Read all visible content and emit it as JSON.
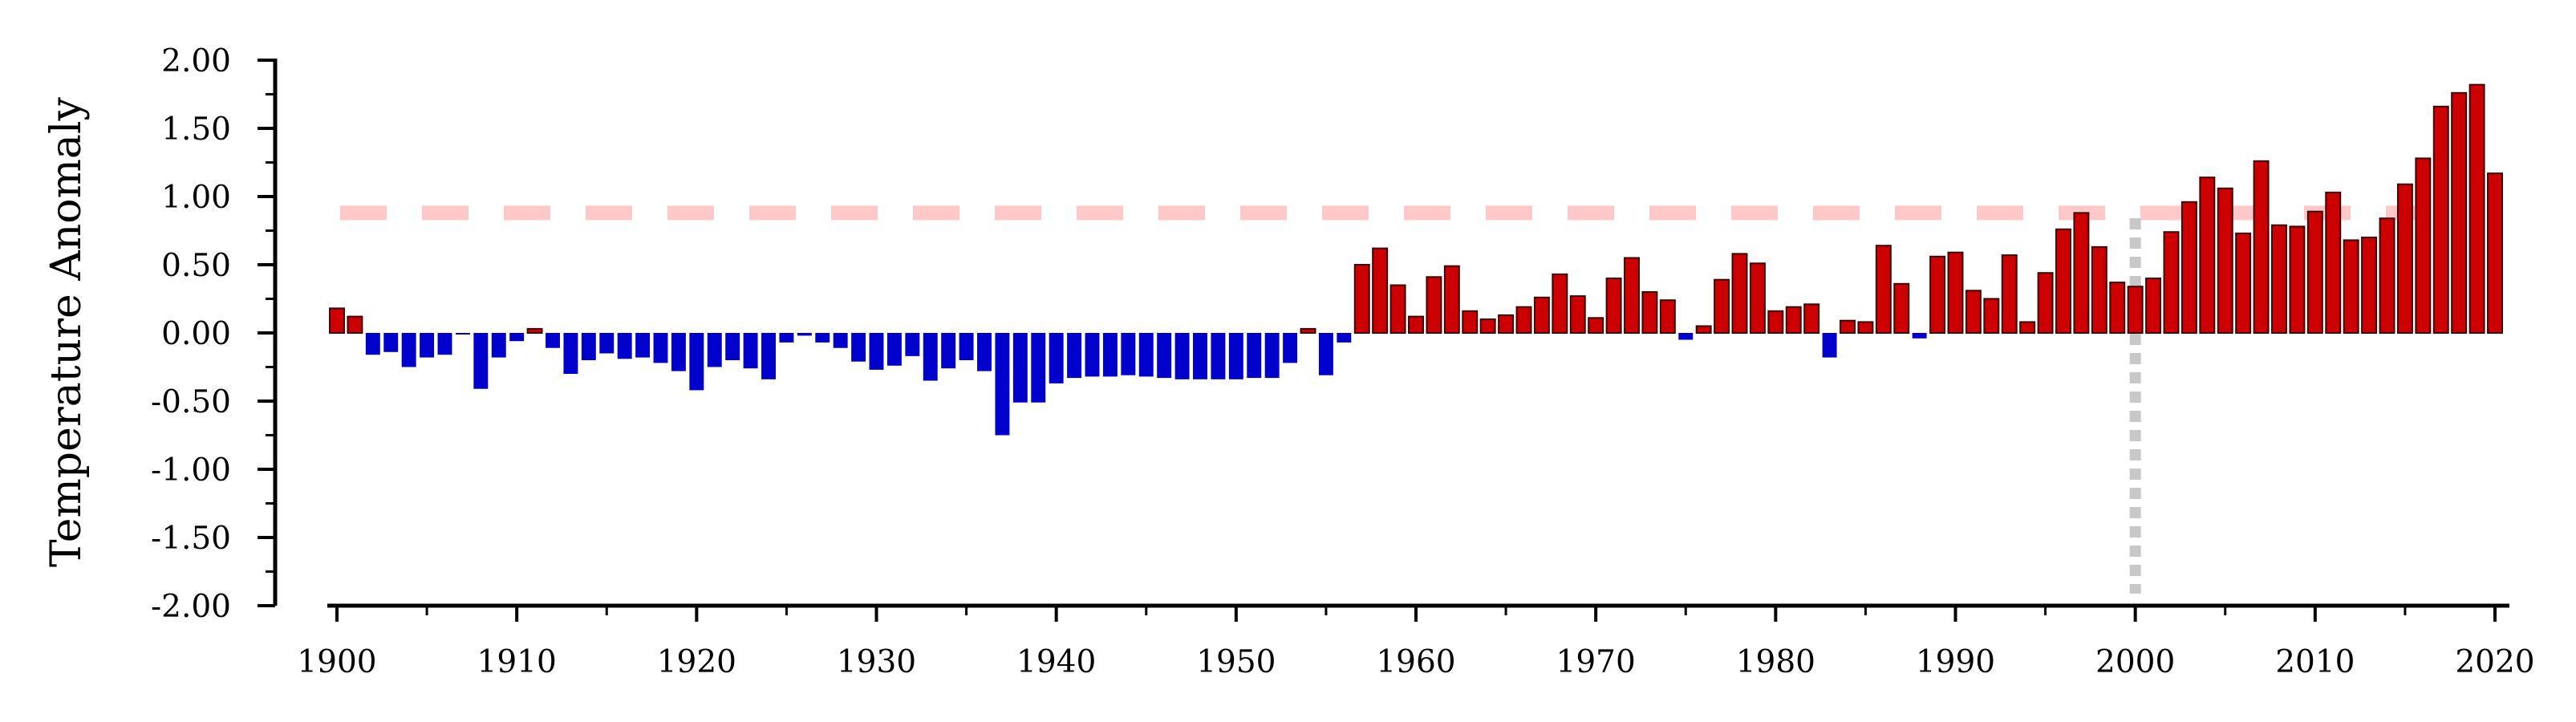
{
  "chart_data": {
    "type": "bar",
    "title": "",
    "xlabel": "",
    "ylabel": "Temperature Anomaly",
    "xlim": [
      1899.5,
      2020.5
    ],
    "ylim": [
      -2.0,
      2.0
    ],
    "yticks": [
      2.0,
      1.5,
      1.0,
      0.5,
      0.0,
      -0.5,
      -1.0,
      -1.5,
      -2.0
    ],
    "ytick_labels": [
      "2.00",
      "1.50",
      "1.00",
      "0.50",
      "0.00",
      "-0.50",
      "-1.00",
      "-1.50",
      "-2.00"
    ],
    "xticks": [
      1900,
      1910,
      1920,
      1930,
      1940,
      1950,
      1960,
      1970,
      1980,
      1990,
      2000,
      2010,
      2020
    ],
    "xtick_labels": [
      "1900",
      "1910",
      "1920",
      "1930",
      "1940",
      "1950",
      "1960",
      "1970",
      "1980",
      "1990",
      "2000",
      "2010",
      "2020"
    ],
    "grid": false,
    "legend": "none",
    "colors": {
      "positive": "#cc0000",
      "negative": "#0000cc",
      "positive_edge": "#3a0000",
      "threshold_line": "#ffc8c8",
      "reference_line": "#c8c8c8"
    },
    "threshold_line": {
      "y": 0.88,
      "style": "dashed"
    },
    "reference_line": {
      "x": 2000,
      "style": "dotted"
    },
    "x": [
      1900,
      1901,
      1902,
      1903,
      1904,
      1905,
      1906,
      1907,
      1908,
      1909,
      1910,
      1911,
      1912,
      1913,
      1914,
      1915,
      1916,
      1917,
      1918,
      1919,
      1920,
      1921,
      1922,
      1923,
      1924,
      1925,
      1926,
      1927,
      1928,
      1929,
      1930,
      1931,
      1932,
      1933,
      1934,
      1935,
      1936,
      1937,
      1938,
      1939,
      1940,
      1941,
      1942,
      1943,
      1944,
      1945,
      1946,
      1947,
      1948,
      1949,
      1950,
      1951,
      1952,
      1953,
      1954,
      1955,
      1956,
      1957,
      1958,
      1959,
      1960,
      1961,
      1962,
      1963,
      1964,
      1965,
      1966,
      1967,
      1968,
      1969,
      1970,
      1971,
      1972,
      1973,
      1974,
      1975,
      1976,
      1977,
      1978,
      1979,
      1980,
      1981,
      1982,
      1983,
      1984,
      1985,
      1986,
      1987,
      1988,
      1989,
      1990,
      1991,
      1992,
      1993,
      1994,
      1995,
      1996,
      1997,
      1998,
      1999,
      2000,
      2001,
      2002,
      2003,
      2004,
      2005,
      2006,
      2007,
      2008,
      2009,
      2010,
      2011,
      2012,
      2013,
      2014,
      2015,
      2016,
      2017,
      2018,
      2019,
      2020
    ],
    "values": [
      0.18,
      0.12,
      -0.16,
      -0.14,
      -0.25,
      -0.18,
      -0.16,
      -0.01,
      -0.41,
      -0.18,
      -0.06,
      0.03,
      -0.11,
      -0.3,
      -0.2,
      -0.15,
      -0.19,
      -0.18,
      -0.22,
      -0.28,
      -0.42,
      -0.25,
      -0.2,
      -0.26,
      -0.34,
      -0.07,
      -0.02,
      -0.07,
      -0.11,
      -0.21,
      -0.27,
      -0.24,
      -0.17,
      -0.35,
      -0.26,
      -0.2,
      -0.28,
      -0.75,
      -0.51,
      -0.51,
      -0.37,
      -0.33,
      -0.32,
      -0.32,
      -0.31,
      -0.32,
      -0.33,
      -0.34,
      -0.34,
      -0.34,
      -0.34,
      -0.33,
      -0.33,
      -0.22,
      0.03,
      -0.31,
      -0.07,
      0.5,
      0.62,
      0.35,
      0.12,
      0.41,
      0.49,
      0.16,
      0.1,
      0.13,
      0.19,
      0.26,
      0.43,
      0.27,
      0.11,
      0.4,
      0.55,
      0.3,
      0.24,
      -0.05,
      0.05,
      0.39,
      0.58,
      0.51,
      0.16,
      0.19,
      0.21,
      -0.18,
      0.09,
      0.08,
      0.64,
      0.36,
      -0.04,
      0.56,
      0.59,
      0.31,
      0.25,
      0.57,
      0.08,
      0.44,
      0.76,
      0.88,
      0.63,
      0.37,
      0.34,
      0.4,
      0.74,
      0.96,
      1.14,
      1.06,
      0.73,
      1.26,
      0.79,
      0.78,
      0.89,
      1.03,
      0.68,
      0.7,
      0.84,
      1.09,
      1.28,
      1.66,
      1.76,
      1.82,
      1.17
    ]
  }
}
